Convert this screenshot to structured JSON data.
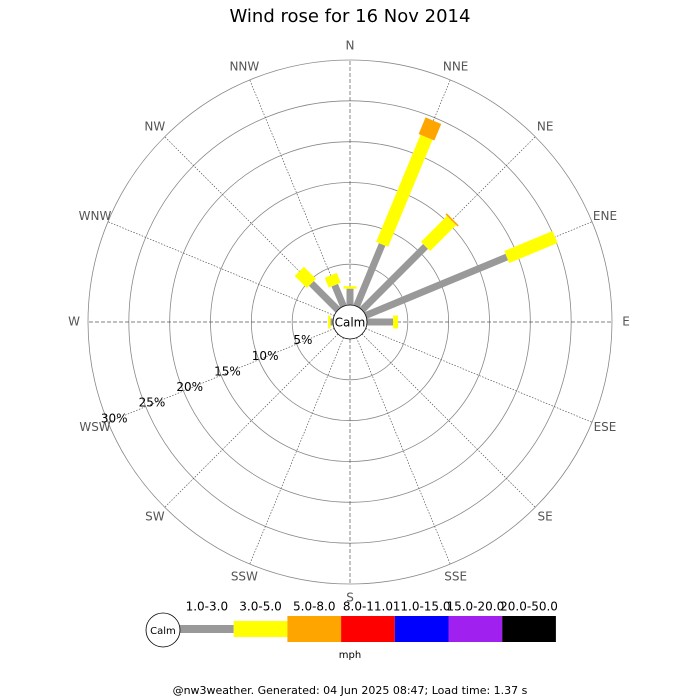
{
  "chart_data": {
    "type": "windrose",
    "title": "Wind rose for 16 Nov 2014",
    "directions": [
      "N",
      "NNE",
      "NE",
      "ENE",
      "E",
      "ESE",
      "SE",
      "SSE",
      "S",
      "SSW",
      "SW",
      "WSW",
      "W",
      "WNW",
      "NW",
      "NNW"
    ],
    "rlim": [
      0,
      30
    ],
    "rticks": [
      {
        "value": 5,
        "label": "5%"
      },
      {
        "value": 10,
        "label": "10%"
      },
      {
        "value": 15,
        "label": "15%"
      },
      {
        "value": 20,
        "label": "20%"
      },
      {
        "value": 25,
        "label": "25%"
      },
      {
        "value": 30,
        "label": "30%"
      }
    ],
    "calm_label": "Calm",
    "unit": "mph",
    "series": [
      {
        "name": "1.0-3.0",
        "color": "#999999",
        "values": [
          2,
          8.2,
          11,
          18.7,
          3.2,
          0,
          0,
          0,
          0,
          0,
          0,
          0,
          0.3,
          0,
          4.6,
          2.8
        ]
      },
      {
        "name": "3.0-5.0",
        "color": "#ffff00",
        "values": [
          0.3,
          14.2,
          4.5,
          6.4,
          0.6,
          0,
          0,
          0,
          0,
          0,
          0,
          0,
          0.3,
          0,
          2.1,
          1.3
        ]
      },
      {
        "name": "5.0-8.0",
        "color": "#ffa500",
        "values": [
          0,
          2.2,
          0.2,
          0,
          0,
          0,
          0,
          0,
          0,
          0,
          0,
          0,
          0,
          0,
          0,
          0
        ]
      },
      {
        "name": "8.0-11.0",
        "color": "#ff0000",
        "values": [
          0,
          0,
          0,
          0,
          0,
          0,
          0,
          0,
          0,
          0,
          0,
          0,
          0,
          0,
          0,
          0
        ]
      },
      {
        "name": "11.0-15.0",
        "color": "#0000ff",
        "values": [
          0,
          0,
          0,
          0,
          0,
          0,
          0,
          0,
          0,
          0,
          0,
          0,
          0,
          0,
          0,
          0
        ]
      },
      {
        "name": "15.0-20.0",
        "color": "#a020f0",
        "values": [
          0,
          0,
          0,
          0,
          0,
          0,
          0,
          0,
          0,
          0,
          0,
          0,
          0,
          0,
          0,
          0
        ]
      },
      {
        "name": "20.0-50.0",
        "color": "#000000",
        "values": [
          0,
          0,
          0,
          0,
          0,
          0,
          0,
          0,
          0,
          0,
          0,
          0,
          0,
          0,
          0,
          0
        ]
      }
    ]
  },
  "footer": "@nw3weather. Generated: 04 Jun 2025 08:47; Load time: 1.37 s"
}
